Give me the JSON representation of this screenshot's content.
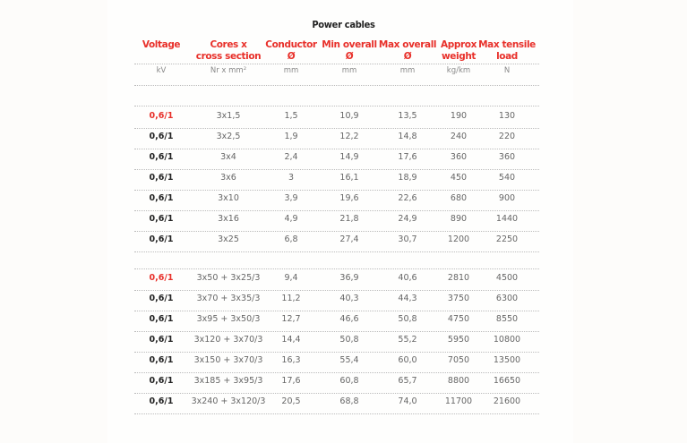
{
  "title": "Power cables",
  "headers": [
    {
      "label": "Voltage",
      "unit": "kV"
    },
    {
      "label": "Cores x\ncross section",
      "unit": "Nr x mm²"
    },
    {
      "label": "Conductor\nØ",
      "unit": "mm"
    },
    {
      "label": "Min overall\nØ",
      "unit": "mm"
    },
    {
      "label": "Max overall\nØ",
      "unit": "mm"
    },
    {
      "label": "Approx\nweight",
      "unit": "kg/km"
    },
    {
      "label": "Max tensile\nload",
      "unit": "N"
    }
  ],
  "colors": {
    "accent": "#e8302a",
    "text": "#222222"
  },
  "groups": [
    {
      "rows": [
        [
          "0,6/1",
          "3x1,5",
          "1,5",
          "10,9",
          "13,5",
          "190",
          "130"
        ],
        [
          "0,6/1",
          "3x2,5",
          "1,9",
          "12,2",
          "14,8",
          "240",
          "220"
        ],
        [
          "0,6/1",
          "3x4",
          "2,4",
          "14,9",
          "17,6",
          "360",
          "360"
        ],
        [
          "0,6/1",
          "3x6",
          "3",
          "16,1",
          "18,9",
          "450",
          "540"
        ],
        [
          "0,6/1",
          "3x10",
          "3,9",
          "19,6",
          "22,6",
          "680",
          "900"
        ],
        [
          "0,6/1",
          "3x16",
          "4,9",
          "21,8",
          "24,9",
          "890",
          "1440"
        ],
        [
          "0,6/1",
          "3x25",
          "6,8",
          "27,4",
          "30,7",
          "1200",
          "2250"
        ]
      ]
    },
    {
      "rows": [
        [
          "0,6/1",
          "3x50 + 3x25/3",
          "9,4",
          "36,9",
          "40,6",
          "2810",
          "4500"
        ],
        [
          "0,6/1",
          "3x70 + 3x35/3",
          "11,2",
          "40,3",
          "44,3",
          "3750",
          "6300"
        ],
        [
          "0,6/1",
          "3x95 + 3x50/3",
          "12,7",
          "46,6",
          "50,8",
          "4750",
          "8550"
        ],
        [
          "0,6/1",
          "3x120 + 3x70/3",
          "14,4",
          "50,8",
          "55,2",
          "5950",
          "10800"
        ],
        [
          "0,6/1",
          "3x150 + 3x70/3",
          "16,3",
          "55,4",
          "60,0",
          "7050",
          "13500"
        ],
        [
          "0,6/1",
          "3x185 + 3x95/3",
          "17,6",
          "60,8",
          "65,7",
          "8800",
          "16650"
        ],
        [
          "0,6/1",
          "3x240 + 3x120/3",
          "20,5",
          "68,8",
          "74,0",
          "11700",
          "21600"
        ]
      ]
    }
  ]
}
